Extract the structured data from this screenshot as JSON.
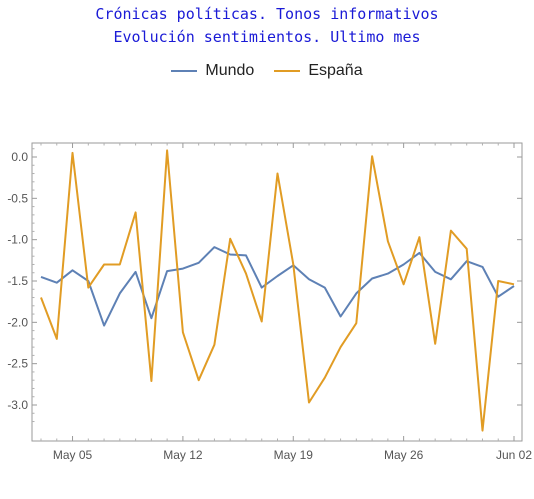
{
  "chart_data": {
    "type": "line",
    "title": "Crónicas políticas. Tonos informativos",
    "subtitle": "Evolución sentimientos. Ultimo mes",
    "xlabel": "",
    "ylabel": "",
    "ylim": [
      -3.4,
      0.15
    ],
    "grid": false,
    "legend_position": "top-center",
    "x": [
      "May 03",
      "May 04",
      "May 05",
      "May 06",
      "May 07",
      "May 08",
      "May 09",
      "May 10",
      "May 11",
      "May 12",
      "May 13",
      "May 14",
      "May 15",
      "May 16",
      "May 17",
      "May 18",
      "May 19",
      "May 20",
      "May 21",
      "May 22",
      "May 23",
      "May 24",
      "May 25",
      "May 26",
      "May 27",
      "May 28",
      "May 29",
      "May 30",
      "May 31",
      "Jun 01",
      "Jun 02"
    ],
    "x_ticks": [
      "May 05",
      "May 12",
      "May 19",
      "May 26",
      "Jun 02"
    ],
    "y_ticks": [
      "0.0",
      "-0.5",
      "-1.0",
      "-1.5",
      "-2.0",
      "-2.5",
      "-3.0"
    ],
    "y_tick_values": [
      0.0,
      -0.5,
      -1.0,
      -1.5,
      -2.0,
      -2.5,
      -3.0
    ],
    "series": [
      {
        "name": "Mundo",
        "color": "#5e81b5",
        "values": [
          -1.45,
          -1.52,
          -1.37,
          -1.5,
          -2.04,
          -1.65,
          -1.39,
          -1.95,
          -1.38,
          -1.35,
          -1.28,
          -1.09,
          -1.18,
          -1.19,
          -1.58,
          -1.44,
          -1.31,
          -1.48,
          -1.58,
          -1.93,
          -1.65,
          -1.47,
          -1.41,
          -1.3,
          -1.16,
          -1.39,
          -1.48,
          -1.26,
          -1.33,
          -1.69,
          -1.56
        ]
      },
      {
        "name": "España",
        "color": "#e19c24",
        "values": [
          -1.7,
          -2.2,
          0.05,
          -1.58,
          -1.3,
          -1.3,
          -0.67,
          -2.71,
          0.08,
          -2.12,
          -2.7,
          -2.27,
          -0.99,
          -1.41,
          -1.99,
          -0.2,
          -1.3,
          -2.97,
          -2.67,
          -2.3,
          -2.01,
          0.01,
          -1.02,
          -1.54,
          -0.97,
          -2.26,
          -0.89,
          -1.11,
          -3.31,
          -1.5,
          -1.54
        ]
      }
    ]
  }
}
